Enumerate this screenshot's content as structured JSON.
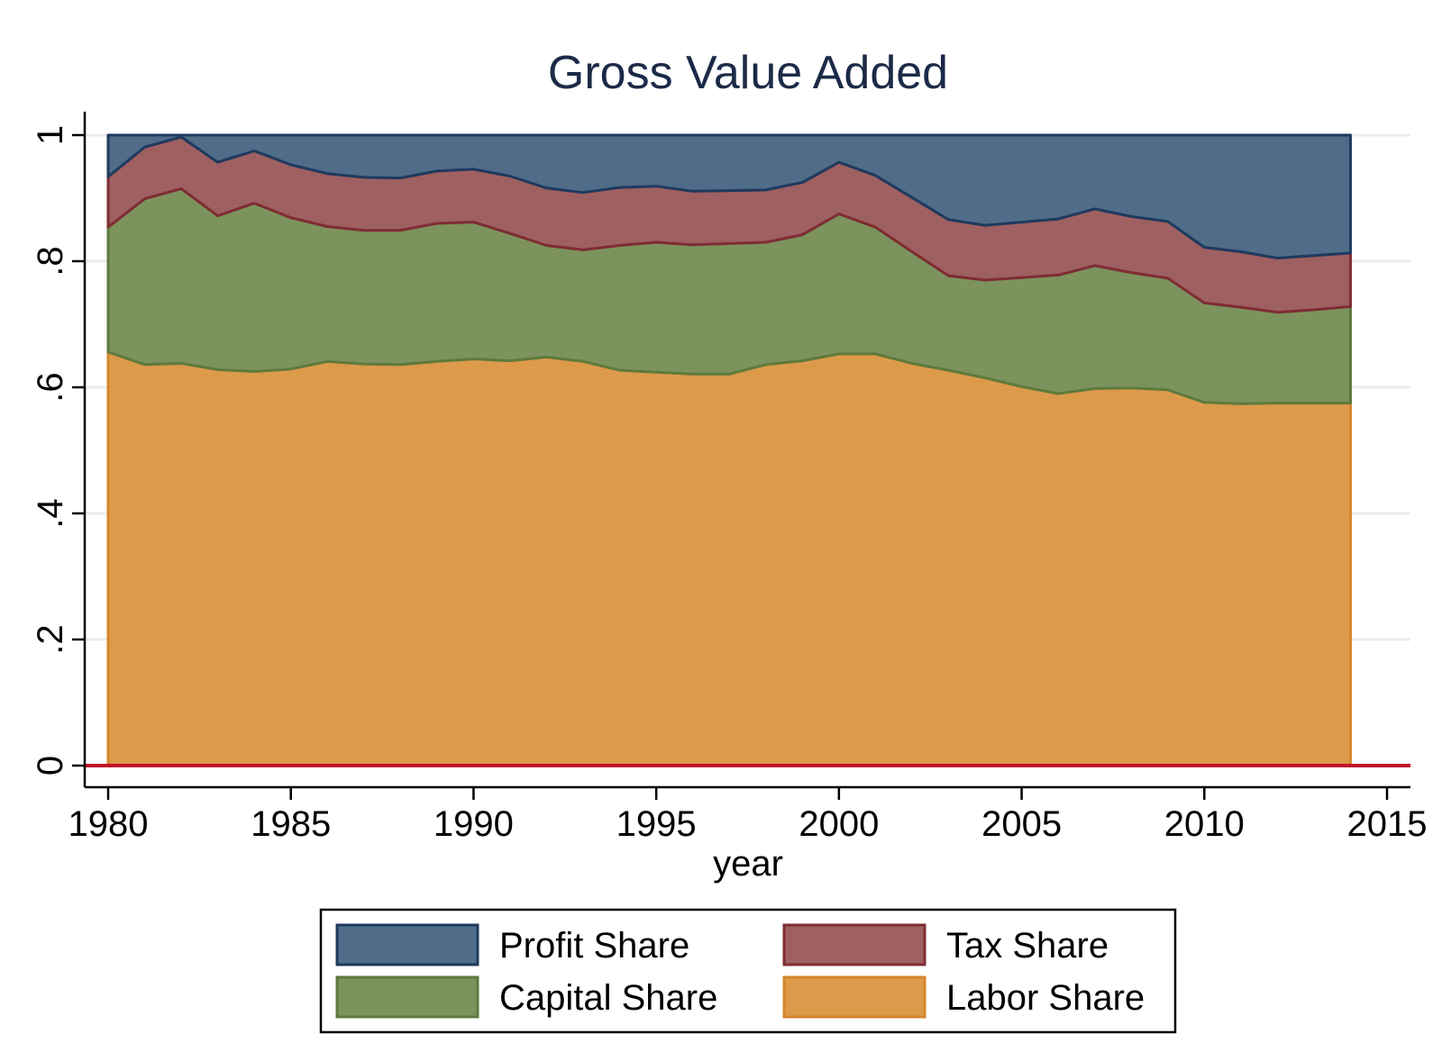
{
  "chart_data": {
    "type": "area",
    "stacked": true,
    "title": "Gross Value Added",
    "xlabel": "year",
    "ylabel": "",
    "xlim": [
      1980,
      2015
    ],
    "ylim": [
      0,
      1
    ],
    "x_ticks": [
      1980,
      1985,
      1990,
      1995,
      2000,
      2005,
      2010,
      2015
    ],
    "y_ticks": [
      0,
      0.2,
      0.4,
      0.6,
      0.8,
      1
    ],
    "y_tick_labels": [
      "0",
      ".2",
      ".4",
      ".6",
      ".8",
      "1"
    ],
    "grid": true,
    "x": [
      1980,
      1981,
      1982,
      1983,
      1984,
      1985,
      1986,
      1987,
      1988,
      1989,
      1990,
      1991,
      1992,
      1993,
      1994,
      1995,
      1996,
      1997,
      1998,
      1999,
      2000,
      2001,
      2002,
      2003,
      2004,
      2005,
      2006,
      2007,
      2008,
      2009,
      2010,
      2011,
      2012,
      2013,
      2014
    ],
    "series": [
      {
        "name": "Labor Share",
        "color": "#dd9a4b",
        "stroke": "#d4862b",
        "values": [
          0.656,
          0.636,
          0.638,
          0.628,
          0.625,
          0.629,
          0.641,
          0.637,
          0.636,
          0.641,
          0.645,
          0.642,
          0.648,
          0.641,
          0.627,
          0.624,
          0.621,
          0.621,
          0.636,
          0.642,
          0.653,
          0.653,
          0.638,
          0.627,
          0.615,
          0.601,
          0.59,
          0.598,
          0.599,
          0.596,
          0.576,
          0.574,
          0.575,
          0.575,
          0.575
        ]
      },
      {
        "name": "Capital Share",
        "color": "#7d935e",
        "stroke": "#5e7a3c",
        "values": [
          0.198,
          0.263,
          0.277,
          0.244,
          0.267,
          0.24,
          0.214,
          0.212,
          0.213,
          0.219,
          0.217,
          0.202,
          0.177,
          0.177,
          0.198,
          0.206,
          0.205,
          0.207,
          0.194,
          0.2,
          0.222,
          0.201,
          0.177,
          0.15,
          0.155,
          0.173,
          0.188,
          0.195,
          0.183,
          0.177,
          0.158,
          0.153,
          0.144,
          0.148,
          0.153
        ]
      },
      {
        "name": "Tax Share",
        "color": "#9e6061",
        "stroke": "#7f2c33",
        "values": [
          0.08,
          0.082,
          0.082,
          0.085,
          0.083,
          0.084,
          0.084,
          0.084,
          0.083,
          0.083,
          0.084,
          0.091,
          0.091,
          0.091,
          0.092,
          0.089,
          0.085,
          0.084,
          0.083,
          0.083,
          0.082,
          0.082,
          0.086,
          0.089,
          0.087,
          0.088,
          0.089,
          0.09,
          0.089,
          0.09,
          0.088,
          0.088,
          0.086,
          0.086,
          0.085
        ]
      },
      {
        "name": "Profit Share",
        "color": "#4f6d89",
        "stroke": "#1f3a5f",
        "values": [
          0.066,
          0.019,
          0.003,
          0.043,
          0.025,
          0.047,
          0.061,
          0.067,
          0.068,
          0.057,
          0.054,
          0.065,
          0.084,
          0.091,
          0.083,
          0.081,
          0.089,
          0.088,
          0.087,
          0.075,
          0.043,
          0.064,
          0.099,
          0.134,
          0.143,
          0.138,
          0.133,
          0.117,
          0.129,
          0.137,
          0.178,
          0.185,
          0.195,
          0.191,
          0.187
        ]
      }
    ],
    "legend": {
      "placement": "bottom",
      "entries": [
        "Profit Share",
        "Tax Share",
        "Capital Share",
        "Labor Share"
      ]
    }
  }
}
